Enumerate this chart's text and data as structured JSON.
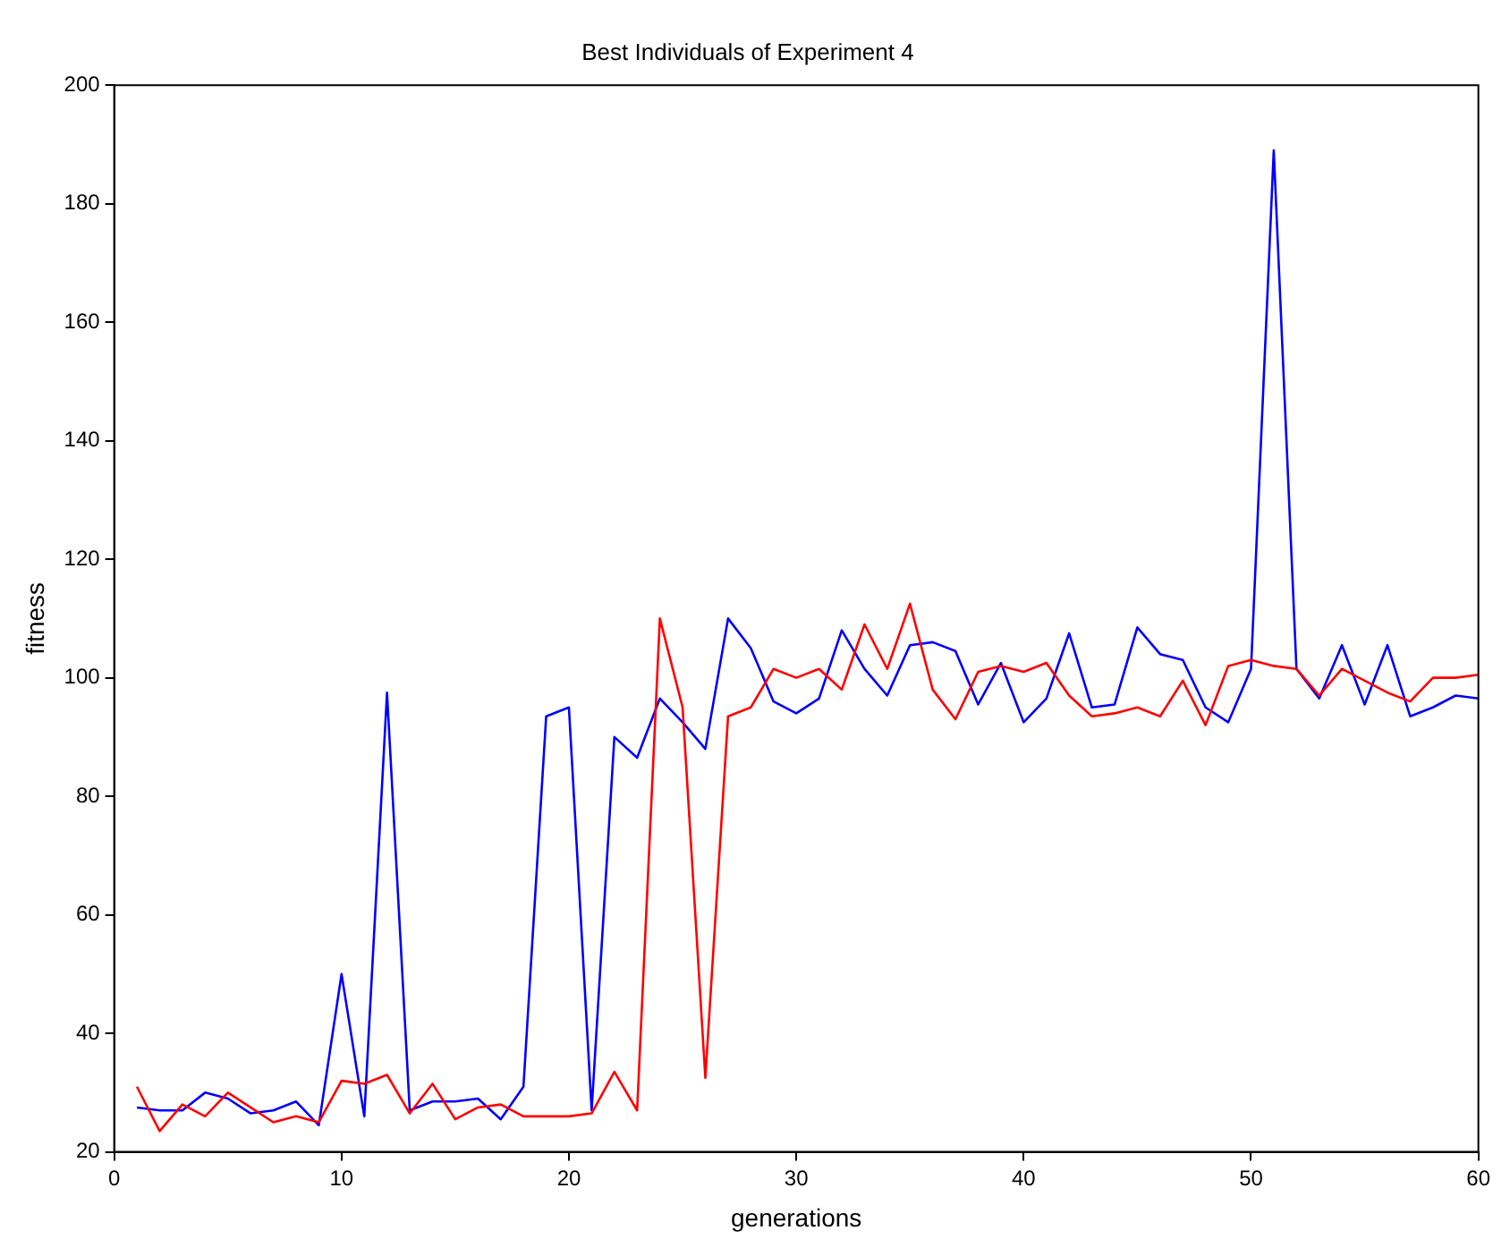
{
  "chart_data": {
    "type": "line",
    "title": "Best Individuals of Experiment 4",
    "xlabel": "generations",
    "ylabel": "fitness",
    "x": [
      1,
      2,
      3,
      4,
      5,
      6,
      7,
      8,
      9,
      10,
      11,
      12,
      13,
      14,
      15,
      16,
      17,
      18,
      19,
      20,
      21,
      22,
      23,
      24,
      25,
      26,
      27,
      28,
      29,
      30,
      31,
      32,
      33,
      34,
      35,
      36,
      37,
      38,
      39,
      40,
      41,
      42,
      43,
      44,
      45,
      46,
      47,
      48,
      49,
      50,
      51,
      52,
      53,
      54,
      55,
      56,
      57,
      58,
      59,
      60
    ],
    "series": [
      {
        "color": "#ff0000",
        "values": [
          31,
          23.5,
          28,
          26,
          30,
          27.5,
          25,
          26,
          25,
          32,
          31.5,
          33,
          26.5,
          31.5,
          25.5,
          27.5,
          28,
          26,
          26,
          26,
          26.5,
          33.5,
          27,
          110,
          95,
          32.5,
          93.5,
          95,
          101.5,
          100,
          101.5,
          98,
          109,
          101.5,
          112.5,
          98,
          93,
          101,
          102,
          101,
          102.5,
          97,
          93.5,
          94,
          95,
          93.5,
          99.5,
          92,
          102,
          103,
          102,
          101.5,
          97,
          101.5,
          99.5,
          97.5,
          96,
          100,
          100,
          100.5
        ]
      },
      {
        "color": "#0000ff",
        "values": [
          27.5,
          27,
          27,
          30,
          29,
          26.5,
          27,
          28.5,
          24.5,
          50,
          26,
          97.5,
          27,
          28.5,
          28.5,
          29,
          25.5,
          31,
          93.5,
          95,
          27,
          90,
          86.5,
          96.5,
          92.5,
          88,
          110,
          105,
          96,
          94,
          96.5,
          108,
          101.5,
          97,
          105.5,
          106,
          104.5,
          95.5,
          102.5,
          92.5,
          96.5,
          107.5,
          95,
          95.5,
          108.5,
          104,
          103,
          95,
          92.5,
          101.5,
          189,
          101.5,
          96.5,
          105.5,
          95.5,
          105.5,
          93.5,
          95,
          97,
          96.5
        ]
      }
    ],
    "xlim": [
      0,
      60
    ],
    "xticks": [
      0,
      10,
      20,
      30,
      40,
      50,
      60
    ],
    "ylim": [
      20,
      200
    ],
    "yticks": [
      20,
      40,
      60,
      80,
      100,
      120,
      140,
      160,
      180,
      200
    ],
    "grid": false,
    "legend": false,
    "marker": "none",
    "line_style": "solid"
  }
}
